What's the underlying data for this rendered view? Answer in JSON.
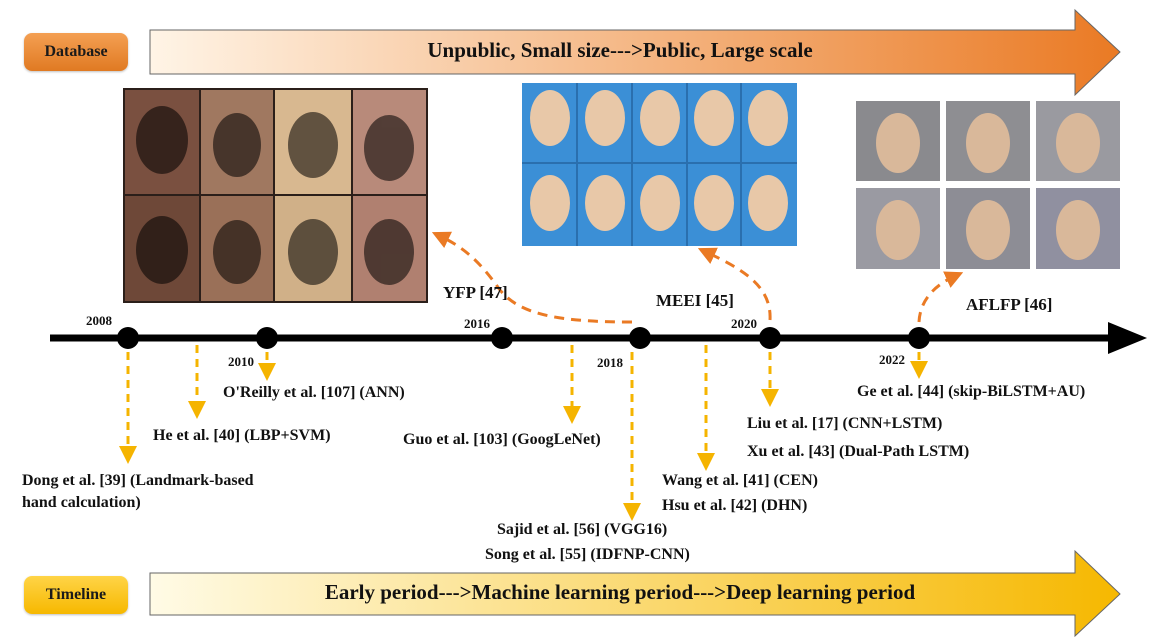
{
  "database": {
    "label": "Database",
    "banner": "Unpublic, Small size--->Public, Large scale",
    "colors": {
      "start": "#fff4e6",
      "end": "#ea7a24"
    }
  },
  "timeline": {
    "label": "Timeline",
    "banner": "Early period--->Machine learning period--->Deep learning period",
    "colors": {
      "start": "#fffbe6",
      "end": "#f6b800"
    }
  },
  "years": {
    "y2008": "2008",
    "y2010": "2010",
    "y2016": "2016",
    "y2018": "2018",
    "y2020": "2020",
    "y2022": "2022"
  },
  "datasets": {
    "yfp": "YFP [47]",
    "meei": "MEEI [45]",
    "aflfp": "AFLFP [46]"
  },
  "methods": {
    "dong": "Dong et al. [39] (Landmark-based\nhand calculation)",
    "he": "He et al. [40] (LBP+SVM)",
    "oreilly": "O'Reilly et al. [107] (ANN)",
    "guo": "Guo et al. [103] (GoogLeNet)",
    "sajid": "Sajid et al. [56] (VGG16)",
    "song": "Song et al. [55] (IDFNP-CNN)",
    "wang": "Wang et al. [41] (CEN)",
    "hsu": "Hsu et al. [42] (DHN)",
    "liu": "Liu et al. [17] (CNN+LSTM)",
    "xu": "Xu et al. [43] (Dual-Path LSTM)",
    "ge": "Ge et al. [44] (skip-BiLSTM+AU)"
  },
  "colors": {
    "axis": "#000000",
    "down_arrow": "#f5b400",
    "dataset_arrow": "#ea7a24"
  }
}
